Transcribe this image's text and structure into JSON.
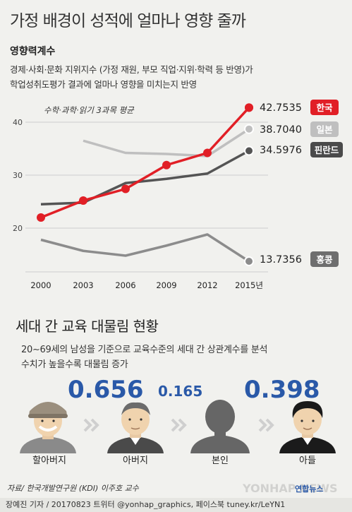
{
  "title": "가정 배경이 성적에 얼마나 영향 줄까",
  "section1": {
    "heading": "영향력계수",
    "desc_line1": "경제·사회·문화 지위지수 (가정 재원, 부모 직업·지위·학력 등 반영)가",
    "desc_line2": "학업성취도평가 결과에 얼마나 영향을 미치는지 반영"
  },
  "chart_data": {
    "type": "line",
    "subtitle": "수학·과학·읽기 3과목 평균",
    "x": [
      "2000",
      "2003",
      "2006",
      "2009",
      "2012",
      "2015년"
    ],
    "ylim": [
      15,
      45
    ],
    "yticks": [
      20,
      30,
      40
    ],
    "grid": true,
    "series": [
      {
        "name": "한국",
        "values": [
          22.0,
          25.2,
          27.4,
          31.9,
          34.2,
          42.7535
        ],
        "end_label": "42.7535",
        "color": "#e11f26",
        "markers": true
      },
      {
        "name": "일본",
        "values": [
          null,
          36.5,
          34.2,
          34.0,
          33.6,
          38.704
        ],
        "end_label": "38.7040",
        "color": "#bfbfbf",
        "markers": false
      },
      {
        "name": "핀란드",
        "values": [
          24.5,
          24.8,
          28.5,
          29.3,
          30.3,
          34.5976
        ],
        "end_label": "34.5976",
        "color": "#545454",
        "markers": false
      },
      {
        "name": "홍콩",
        "values": [
          17.8,
          15.7,
          14.8,
          16.7,
          18.8,
          13.7356
        ],
        "end_label": "13.7356",
        "color": "#8c8c8c",
        "markers": false
      }
    ]
  },
  "section2": {
    "heading": "세대 간 교육 대물림 현황",
    "desc_line1": "20∼69세의 남성을 기준으로 교육수준의 세대 간 상관계수를 분석",
    "desc_line2": "수치가 높을수록 대물림 증가",
    "coef1": "0.656",
    "coef2": "0.165",
    "coef3": "0.398",
    "people": [
      "할아버지",
      "아버지",
      "본인",
      "아들"
    ]
  },
  "source": "자료/ 한국개발연구원 (KDI) 이주호 교수",
  "credit": "장예진 기자 / 20170823 트위터 @yonhap_graphics, 페이스북 tuney.kr/LeYN1",
  "logo": "연합뉴스",
  "watermark": "YONHAP NEWS"
}
